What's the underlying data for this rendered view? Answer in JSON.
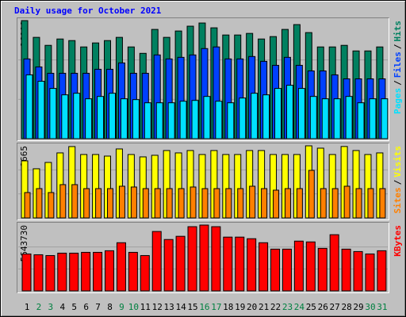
{
  "chart_data": {
    "type": "bar",
    "title": "Daily usage for October 2021",
    "categories": [
      "1",
      "2",
      "3",
      "4",
      "5",
      "6",
      "7",
      "8",
      "9",
      "10",
      "11",
      "12",
      "13",
      "14",
      "15",
      "16",
      "17",
      "18",
      "19",
      "20",
      "21",
      "22",
      "23",
      "24",
      "25",
      "26",
      "27",
      "28",
      "29",
      "30",
      "31"
    ],
    "weekend_days": [
      "2",
      "3",
      "9",
      "10",
      "16",
      "17",
      "23",
      "24",
      "30",
      "31"
    ],
    "weekend_color": "#008040",
    "weekday_color": "#000000",
    "legend_separator": "/",
    "panels": [
      {
        "ylim": [
          0,
          26009
        ],
        "yticks": [
          26009
        ],
        "series": [
          {
            "name": "Hits",
            "color": "#008060",
            "values": [
              26009,
              22320,
              20560,
              21960,
              21610,
              20210,
              21090,
              21610,
              22320,
              20210,
              18800,
              24070,
              22320,
              23720,
              24780,
              25480,
              24420,
              22840,
              22840,
              23190,
              21960,
              22490,
              24070,
              25130,
              23370,
              20210,
              20210,
              20560,
              19330,
              19330,
              20210
            ]
          },
          {
            "name": "Files",
            "color": "#0040ff",
            "values": [
              17570,
              15810,
              14410,
              14410,
              14410,
              14410,
              15290,
              15290,
              16690,
              14410,
              14410,
              18450,
              17570,
              17920,
              18450,
              19850,
              20210,
              17570,
              17570,
              18100,
              17040,
              16160,
              17920,
              16160,
              14930,
              14930,
              14060,
              13180,
              13180,
              13180,
              13180
            ]
          },
          {
            "name": "Pages",
            "color": "#00e0ff",
            "values": [
              14060,
              12650,
              11070,
              9660,
              10010,
              8790,
              9310,
              10010,
              8790,
              8610,
              7910,
              7910,
              7910,
              8260,
              8430,
              9310,
              8260,
              7910,
              8960,
              10010,
              9660,
              11070,
              11770,
              11070,
              9310,
              8790,
              8790,
              9310,
              7910,
              8790,
              8790
            ]
          }
        ]
      },
      {
        "ylim": [
          0,
          2665
        ],
        "yticks": [
          2665
        ],
        "series": [
          {
            "name": "Visits",
            "color": "#ffff00",
            "values": [
              2110,
              1817,
              2051,
              2403,
              2637,
              2344,
              2344,
              2285,
              2549,
              2344,
              2256,
              2315,
              2491,
              2403,
              2491,
              2344,
              2491,
              2344,
              2344,
              2491,
              2491,
              2344,
              2344,
              2344,
              2665,
              2578,
              2344,
              2640,
              2491,
              2344,
              2403
            ]
          },
          {
            "name": "Sites",
            "color": "#ff8000",
            "values": [
              938,
              1084,
              938,
              1231,
              1231,
              1084,
              1084,
              1084,
              1172,
              1143,
              1084,
              1084,
              1084,
              1084,
              1143,
              1084,
              1084,
              1084,
              1084,
              1172,
              1084,
              1026,
              1084,
              1084,
              1758,
              1084,
              1084,
              1172,
              1084,
              1084,
              1084
            ]
          }
        ]
      },
      {
        "ylim": [
          0,
          5643730
        ],
        "yticks": [
          5643730
        ],
        "series": [
          {
            "name": "KBytes",
            "color": "#ff0000",
            "values": [
              3166000,
              3097170,
              3028340,
              3234820,
              3234820,
              3303650,
              3303650,
              3441300,
              4129560,
              3303650,
              3028340,
              5093120,
              4404860,
              4680170,
              5506080,
              5643730,
              5506080,
              4611340,
              4611340,
              4473690,
              4129560,
              3578950,
              3578950,
              4267210,
              4198390,
              3647780,
              4817820,
              3578950,
              3372470,
              3166000,
              3441300
            ]
          }
        ]
      }
    ]
  }
}
